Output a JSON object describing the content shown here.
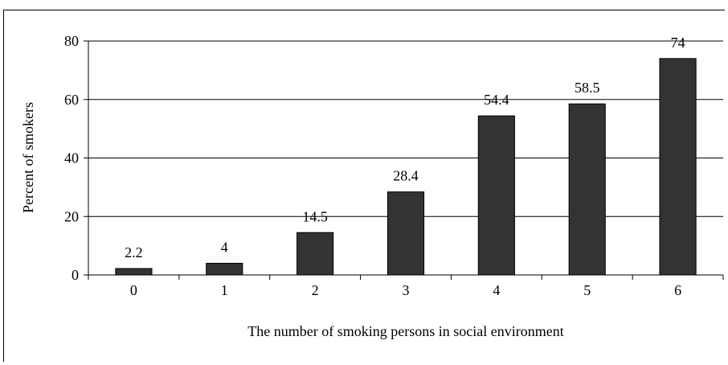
{
  "chart_data": {
    "type": "bar",
    "categories": [
      "0",
      "1",
      "2",
      "3",
      "4",
      "5",
      "6"
    ],
    "values": [
      2.2,
      4,
      14.5,
      28.4,
      54.4,
      58.5,
      74
    ],
    "data_labels": [
      "2.2",
      "4",
      "14.5",
      "28.4",
      "54.4",
      "58.5",
      "74"
    ],
    "title": "",
    "xlabel": "The number of smoking persons in social environment",
    "ylabel": "Percent of smokers",
    "ylim": [
      0,
      80
    ],
    "yticks": [
      0,
      20,
      40,
      60,
      80
    ],
    "grid": true,
    "bar_color": "#333333"
  }
}
